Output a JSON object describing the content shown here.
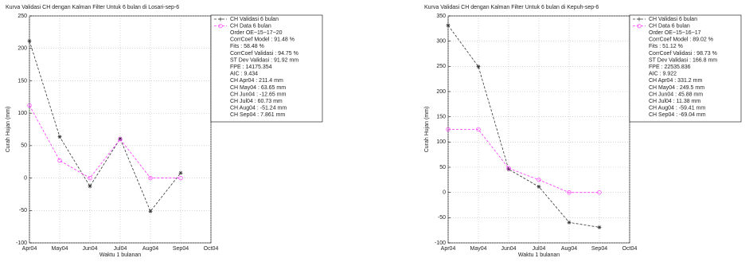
{
  "chart_data": [
    {
      "type": "line",
      "title": "Kurva Validasi CH dengan Kalman Filter Untuk 6 bulan di Losari-sep-6",
      "xlabel": "Waktu 1 bulanan",
      "ylabel": "Curah Hujan (mm)",
      "categories": [
        "Apr04",
        "May04",
        "Jun04",
        "Jul04",
        "Aug04",
        "Sep04",
        "Oct04"
      ],
      "series": [
        {
          "name": "CH Validasi 6 bulan",
          "color": "#333333",
          "marker": "star",
          "dashed": true,
          "values": [
            211.4,
            63.65,
            -12.65,
            60.73,
            -51.24,
            7.861,
            null
          ]
        },
        {
          "name": "CH Data 6 bulan",
          "color": "#ff33ff",
          "marker": "circle",
          "dashed": true,
          "values": [
            112,
            27,
            0,
            60,
            0,
            0,
            null
          ]
        }
      ],
      "legend_notes": [
        "Order OE~15~17~20",
        "CorrCoef Model : 91.48 %",
        "Fits : 58.48 %",
        "CorrCoef Validasi : 94.75 %",
        "ST Dev Validasi : 91.92 mm",
        "FPE : 14175.354",
        "AIC : 9.434",
        "CH Apr04 : 211.4 mm",
        "CH May04 : 63.65 mm",
        "CH Jun04 : -12.65 mm",
        "CH Jul04 : 60.73 mm",
        "CH Aug04 : -51.24 mm",
        "CH Sep04 : 7.861 mm"
      ],
      "ylim": [
        -100,
        250
      ],
      "yticks": [
        -100,
        -50,
        0,
        50,
        100,
        150,
        200,
        250
      ],
      "grid": true
    },
    {
      "type": "line",
      "title": "Kurva Validasi CH dengan Kalman Filter Untuk 6 bulan di Kepuh-sep-6",
      "xlabel": "Waktu 1 bulanan",
      "ylabel": "Curah Hujan (mm)",
      "categories": [
        "Apr04",
        "May04",
        "Jun04",
        "Jul04",
        "Aug04",
        "Sep04",
        "Oct04"
      ],
      "series": [
        {
          "name": "CH Validasi 6 bulan",
          "color": "#333333",
          "marker": "star",
          "dashed": true,
          "values": [
            331.2,
            249.5,
            45.88,
            11.38,
            -59.41,
            -69.04,
            null
          ]
        },
        {
          "name": "CH Data 6 bulan",
          "color": "#ff33ff",
          "marker": "circle",
          "dashed": true,
          "values": [
            125,
            125,
            48,
            25,
            0,
            0,
            null
          ]
        }
      ],
      "legend_notes": [
        "Order OE~15~16~17",
        "CorrCoef Model : 89.02 %",
        "Fits : 51.12 %",
        "CorrCoef Validasi : 98.73 %",
        "ST Dev Validasi : 166.8 mm",
        "FPE : 22535.836",
        "AIC : 9.922",
        "CH Apr04 : 331.2 mm",
        "CH May04 : 249.5 mm",
        "CH Jun04 : 45.88 mm",
        "CH Jul04 : 11.38 mm",
        "CH Aug04 : -59.41 mm",
        "CH Sep04 : -69.04 mm"
      ],
      "ylim": [
        -100,
        350
      ],
      "yticks": [
        -100,
        -50,
        0,
        50,
        100,
        150,
        200,
        250,
        300,
        350
      ],
      "grid": true
    }
  ]
}
